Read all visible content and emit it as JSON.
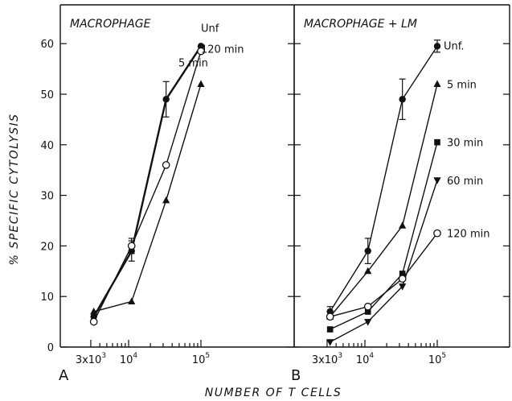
{
  "ylabel": "% SPECIFIC CYTOLYSIS",
  "xlabel": "NUMBER OF T CELLS",
  "chart_data": [
    {
      "type": "line",
      "panel_label": "A",
      "title": "MACROPHAGE",
      "x_scale": "log",
      "xlim": [
        2000,
        250000
      ],
      "ylim": [
        0,
        68
      ],
      "x_ticks": [
        3000,
        10000,
        100000
      ],
      "x_tick_labels": [
        {
          "base": "3x10",
          "exp": "3"
        },
        {
          "base": "10",
          "exp": "4"
        },
        {
          "base": "10",
          "exp": "5"
        }
      ],
      "y_ticks": [
        0,
        10,
        20,
        30,
        40,
        50,
        60
      ],
      "series": [
        {
          "name": "Unf",
          "marker": "filled-circle",
          "bold": true,
          "x": [
            3300,
            11000,
            33000,
            100000
          ],
          "y": [
            6,
            19,
            49,
            59.5
          ],
          "yerr": [
            0,
            2,
            3.5,
            0
          ]
        },
        {
          "name": "120 min",
          "marker": "open-circle",
          "bold": false,
          "x": [
            3300,
            11000,
            33000,
            100000
          ],
          "y": [
            5,
            20,
            36,
            58.5
          ],
          "yerr": [
            0,
            1.5,
            0,
            0
          ]
        },
        {
          "name": "5 min",
          "marker": "filled-triangle-up",
          "bold": false,
          "x": [
            3300,
            11000,
            33000,
            100000
          ],
          "y": [
            7,
            9,
            29,
            52
          ],
          "yerr": [
            0,
            0,
            0,
            0
          ]
        }
      ]
    },
    {
      "type": "line",
      "panel_label": "B",
      "title": "MACROPHAGE + LM",
      "x_scale": "log",
      "xlim": [
        2000,
        250000
      ],
      "ylim": [
        0,
        68
      ],
      "x_ticks": [
        3000,
        10000,
        100000
      ],
      "x_tick_labels": [
        {
          "base": "3x10",
          "exp": "3"
        },
        {
          "base": "10",
          "exp": "4"
        },
        {
          "base": "10",
          "exp": "5"
        }
      ],
      "y_ticks": [
        0,
        10,
        20,
        30,
        40,
        50,
        60
      ],
      "series": [
        {
          "name": "Unf.",
          "marker": "filled-circle",
          "bold": false,
          "x": [
            3300,
            11000,
            33000,
            100000
          ],
          "y": [
            7,
            19,
            49,
            59.5
          ],
          "yerr": [
            1,
            2.5,
            4,
            1.2
          ]
        },
        {
          "name": "5 min",
          "marker": "filled-triangle-up",
          "bold": false,
          "x": [
            3300,
            11000,
            33000,
            100000
          ],
          "y": [
            6,
            15,
            24,
            52
          ],
          "yerr": [
            0,
            0,
            0,
            0
          ]
        },
        {
          "name": "30 min",
          "marker": "filled-square",
          "bold": false,
          "x": [
            3300,
            11000,
            33000,
            100000
          ],
          "y": [
            3.5,
            7,
            14.5,
            40.5
          ],
          "yerr": [
            0,
            0,
            0,
            0
          ]
        },
        {
          "name": "60 min",
          "marker": "filled-triangle-down",
          "bold": false,
          "x": [
            3300,
            11000,
            33000,
            100000
          ],
          "y": [
            1,
            5,
            12,
            33
          ],
          "yerr": [
            0,
            0,
            0,
            0
          ]
        },
        {
          "name": "120 min",
          "marker": "open-circle",
          "bold": false,
          "x": [
            3300,
            11000,
            33000,
            100000
          ],
          "y": [
            6,
            8,
            13.5,
            22.5
          ],
          "yerr": [
            0,
            0,
            0,
            0
          ]
        }
      ]
    }
  ]
}
